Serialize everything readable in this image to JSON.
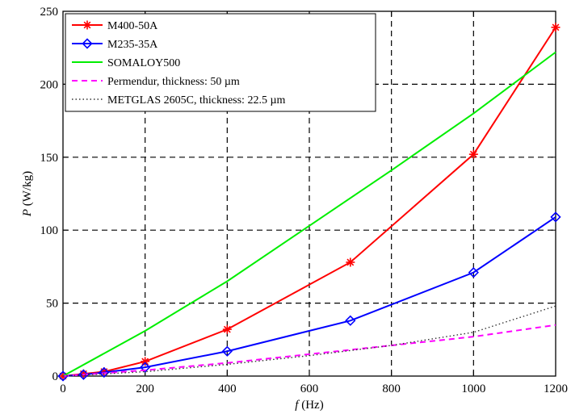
{
  "chart_data": {
    "type": "line",
    "xlabel_var": "f",
    "xlabel_unit": " (Hz)",
    "ylabel_var": "P",
    "ylabel_unit": " (W/kg)",
    "xlim": [
      0,
      1200
    ],
    "ylim": [
      0,
      250
    ],
    "xticks": [
      0,
      200,
      400,
      600,
      800,
      1000,
      1200
    ],
    "yticks": [
      0,
      50,
      100,
      150,
      200,
      250
    ],
    "grid": true,
    "grid_style": "dashed",
    "legend_position": "top-left",
    "series": [
      {
        "name": "M400-50A",
        "color": "#ff0000",
        "marker": "star",
        "dash": "solid",
        "x": [
          0,
          50,
          100,
          200,
          400,
          700,
          1000,
          1200
        ],
        "y": [
          0,
          1.5,
          3,
          10,
          32,
          78,
          152,
          239
        ]
      },
      {
        "name": "M235-35A",
        "color": "#0000ff",
        "marker": "diamond",
        "dash": "solid",
        "x": [
          0,
          50,
          100,
          200,
          400,
          700,
          1000,
          1200
        ],
        "y": [
          0,
          1,
          2.5,
          6,
          17,
          38,
          71,
          109
        ]
      },
      {
        "name": "SOMALOY500",
        "color": "#00ee00",
        "marker": "none",
        "dash": "solid",
        "x": [
          0,
          200,
          400,
          600,
          800,
          1000,
          1200
        ],
        "y": [
          0,
          31,
          65,
          103,
          141,
          180,
          222
        ]
      },
      {
        "name": "Permendur, thickness: 50 µm",
        "color": "#ff00ff",
        "marker": "none",
        "dash": "dashed",
        "x": [
          0,
          200,
          400,
          600,
          800,
          1000,
          1200
        ],
        "y": [
          0,
          4,
          9,
          15,
          21,
          27,
          35
        ]
      },
      {
        "name": "METGLAS 2605C, thickness: 22.5 µm",
        "color": "#333333",
        "marker": "none",
        "dash": "dotted",
        "x": [
          0,
          200,
          400,
          600,
          800,
          1000,
          1200
        ],
        "y": [
          0,
          3,
          8,
          14,
          21,
          30,
          48
        ]
      }
    ]
  }
}
